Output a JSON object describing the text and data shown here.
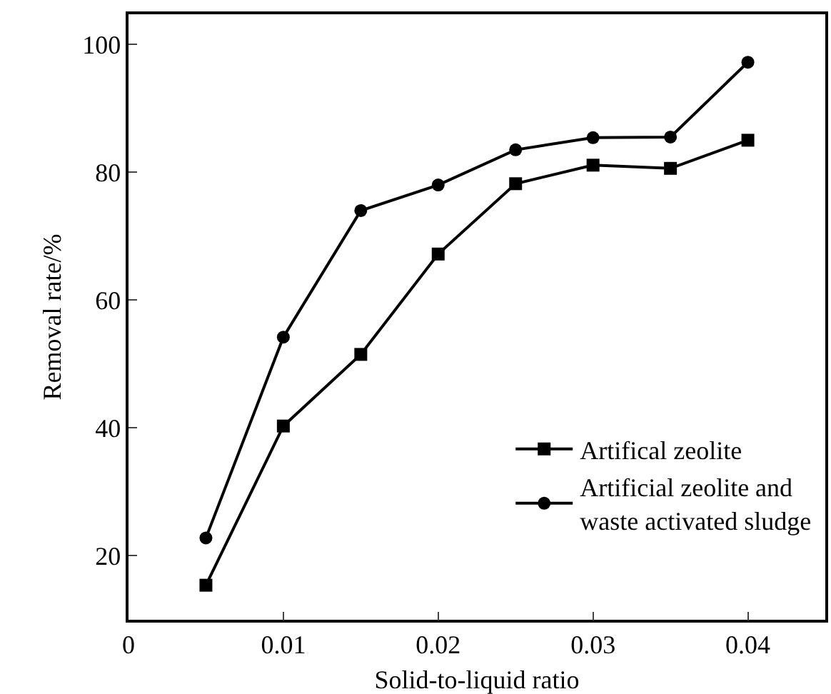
{
  "chart_data": {
    "type": "line",
    "xlabel": "Solid-to-liquid ratio",
    "ylabel": "Removal rate/%",
    "x": [
      0.005,
      0.01,
      0.015,
      0.02,
      0.025,
      0.03,
      0.035,
      0.04
    ],
    "series": [
      {
        "name": "Artifical zeolite",
        "color": "#000000",
        "marker": "square",
        "values": [
          15.4,
          40.3,
          51.5,
          67.2,
          78.2,
          81.1,
          80.6,
          85.0
        ]
      },
      {
        "name": "Artificial zeolite and\nwaste activated sludge",
        "color": "#000000",
        "marker": "circle",
        "values": [
          22.8,
          54.2,
          74.0,
          78.0,
          83.5,
          85.4,
          85.5,
          97.2
        ]
      }
    ],
    "xlim": [
      0,
      0.045
    ],
    "xticks": [
      0,
      0.01,
      0.02,
      0.03,
      0.04
    ],
    "ylim": [
      10,
      104.7
    ],
    "yticks": [
      20,
      40,
      60,
      80,
      100
    ],
    "grid": false,
    "legend": "bottom right",
    "line_style": "solid"
  }
}
